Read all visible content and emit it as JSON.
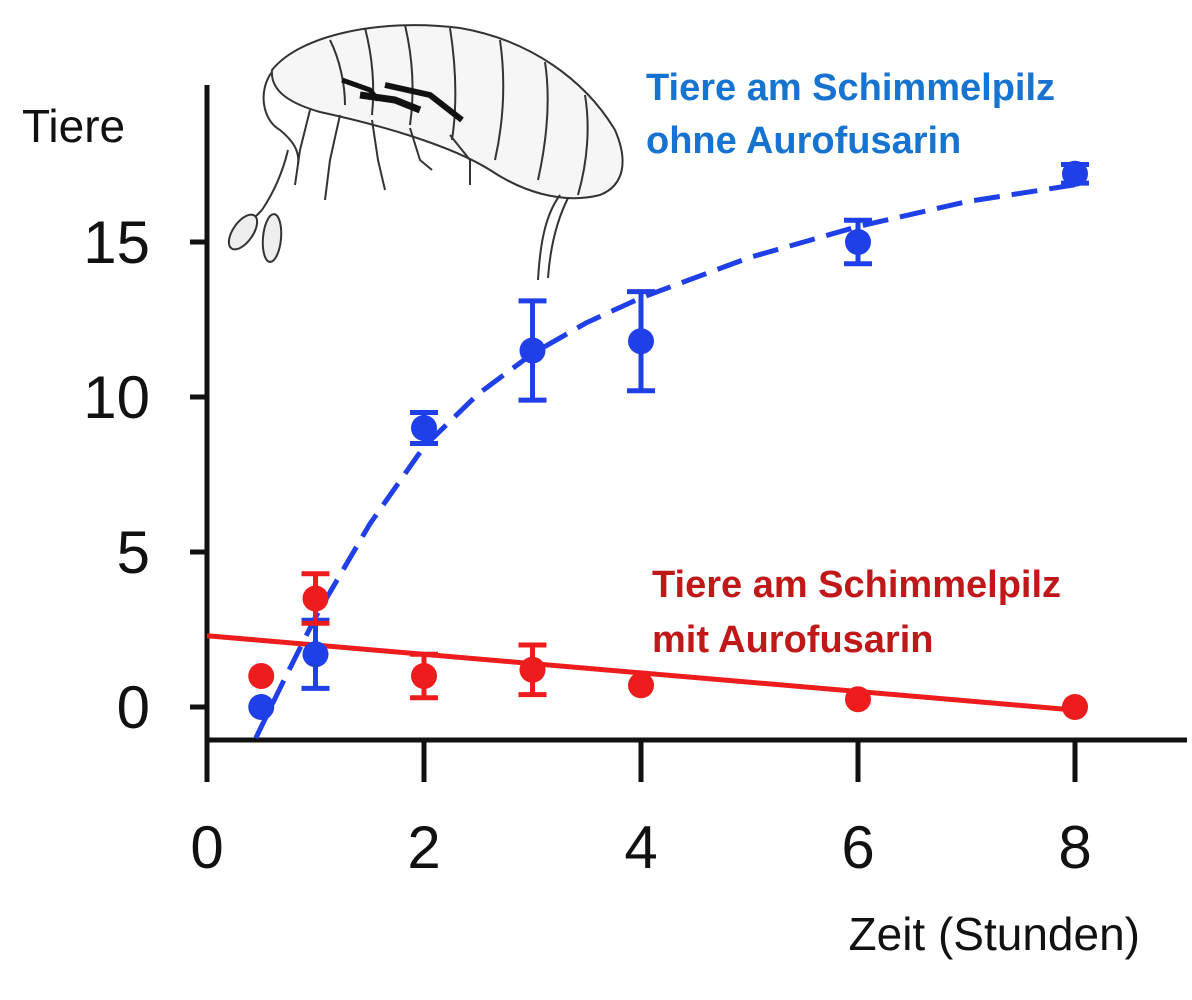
{
  "chart_data": {
    "type": "scatter",
    "ylabel": "Tiere",
    "xlabel": "Zeit (Stunden)",
    "xlim": [
      0,
      9
    ],
    "ylim": [
      -1,
      20
    ],
    "x_ticks": [
      "0",
      "2",
      "4",
      "6",
      "8"
    ],
    "y_ticks": [
      "0",
      "5",
      "10",
      "15"
    ],
    "grid": false,
    "series": [
      {
        "name_lines": [
          "Tiere am Schimmelpilz",
          "ohne Aurofusarin"
        ],
        "color": "#1f3fe8",
        "label_color": "#1673cf",
        "points": [
          {
            "x": 0.5,
            "y": 0.0,
            "err": 0.0
          },
          {
            "x": 1.0,
            "y": 1.7,
            "err": 1.1
          },
          {
            "x": 2.0,
            "y": 9.0,
            "err": 0.5
          },
          {
            "x": 3.0,
            "y": 11.5,
            "err": 1.6
          },
          {
            "x": 4.0,
            "y": 11.8,
            "err": 1.6
          },
          {
            "x": 6.0,
            "y": 15.0,
            "err": 0.7
          },
          {
            "x": 8.0,
            "y": 17.2,
            "err": 0.3
          }
        ],
        "fit": {
          "style": "dashed",
          "x": [
            0.45,
            0.7,
            1.0,
            1.5,
            2.0,
            2.5,
            3.0,
            3.5,
            4.0,
            5.0,
            6.0,
            7.0,
            8.1
          ],
          "y": [
            -1.0,
            0.8,
            2.9,
            5.9,
            8.4,
            10.1,
            11.4,
            12.4,
            13.2,
            14.5,
            15.5,
            16.3,
            16.9
          ]
        }
      },
      {
        "name_lines": [
          "Tiere am Schimmelpilz",
          "mit Aurofusarin"
        ],
        "color": "#ee1c1c",
        "label_color": "#c01818",
        "points": [
          {
            "x": 0.5,
            "y": 1.0,
            "err": 0.0
          },
          {
            "x": 1.0,
            "y": 3.5,
            "err": 0.8
          },
          {
            "x": 2.0,
            "y": 1.0,
            "err": 0.7
          },
          {
            "x": 3.0,
            "y": 1.2,
            "err": 0.8
          },
          {
            "x": 4.0,
            "y": 0.7,
            "err": 0.0
          },
          {
            "x": 6.0,
            "y": 0.25,
            "err": 0.0
          },
          {
            "x": 8.0,
            "y": 0.0,
            "err": 0.0
          }
        ],
        "fit": {
          "style": "solid",
          "x": [
            0.0,
            8.0
          ],
          "y": [
            2.3,
            -0.1
          ]
        }
      }
    ]
  }
}
